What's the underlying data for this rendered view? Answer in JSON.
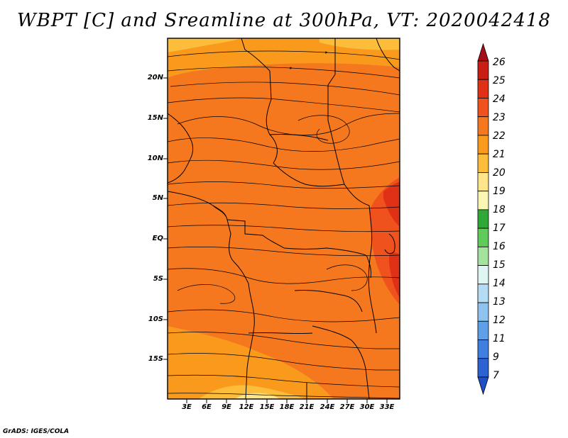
{
  "title": "WBPT [C] and Sreamline at 300hPa, VT: 2020042418",
  "credit": "GrADS: IGES/COLA",
  "map": {
    "lat_labels": [
      "20N",
      "15N",
      "10N",
      "5N",
      "EQ",
      "5S",
      "10S",
      "15S"
    ],
    "lon_labels": [
      "3E",
      "6E",
      "9E",
      "12E",
      "15E",
      "18E",
      "21E",
      "24E",
      "27E",
      "30E",
      "33E"
    ]
  },
  "colorbar": {
    "levels": [
      "26",
      "25",
      "24",
      "23",
      "22",
      "21",
      "20",
      "19",
      "18",
      "17",
      "16",
      "15",
      "14",
      "13",
      "12",
      "11",
      "9",
      "7"
    ],
    "colors": [
      "#a50f15",
      "#c81e16",
      "#e03117",
      "#f0521e",
      "#f5781f",
      "#fa9a1c",
      "#fcbd3a",
      "#fee58a",
      "#fbf6b4",
      "#2fa838",
      "#5fcb5a",
      "#a4e39b",
      "#dff5f3",
      "#b4dcf5",
      "#8ec3f0",
      "#5f9fe8",
      "#3f7fe0",
      "#2c62d2",
      "#1f4fc7"
    ]
  }
}
